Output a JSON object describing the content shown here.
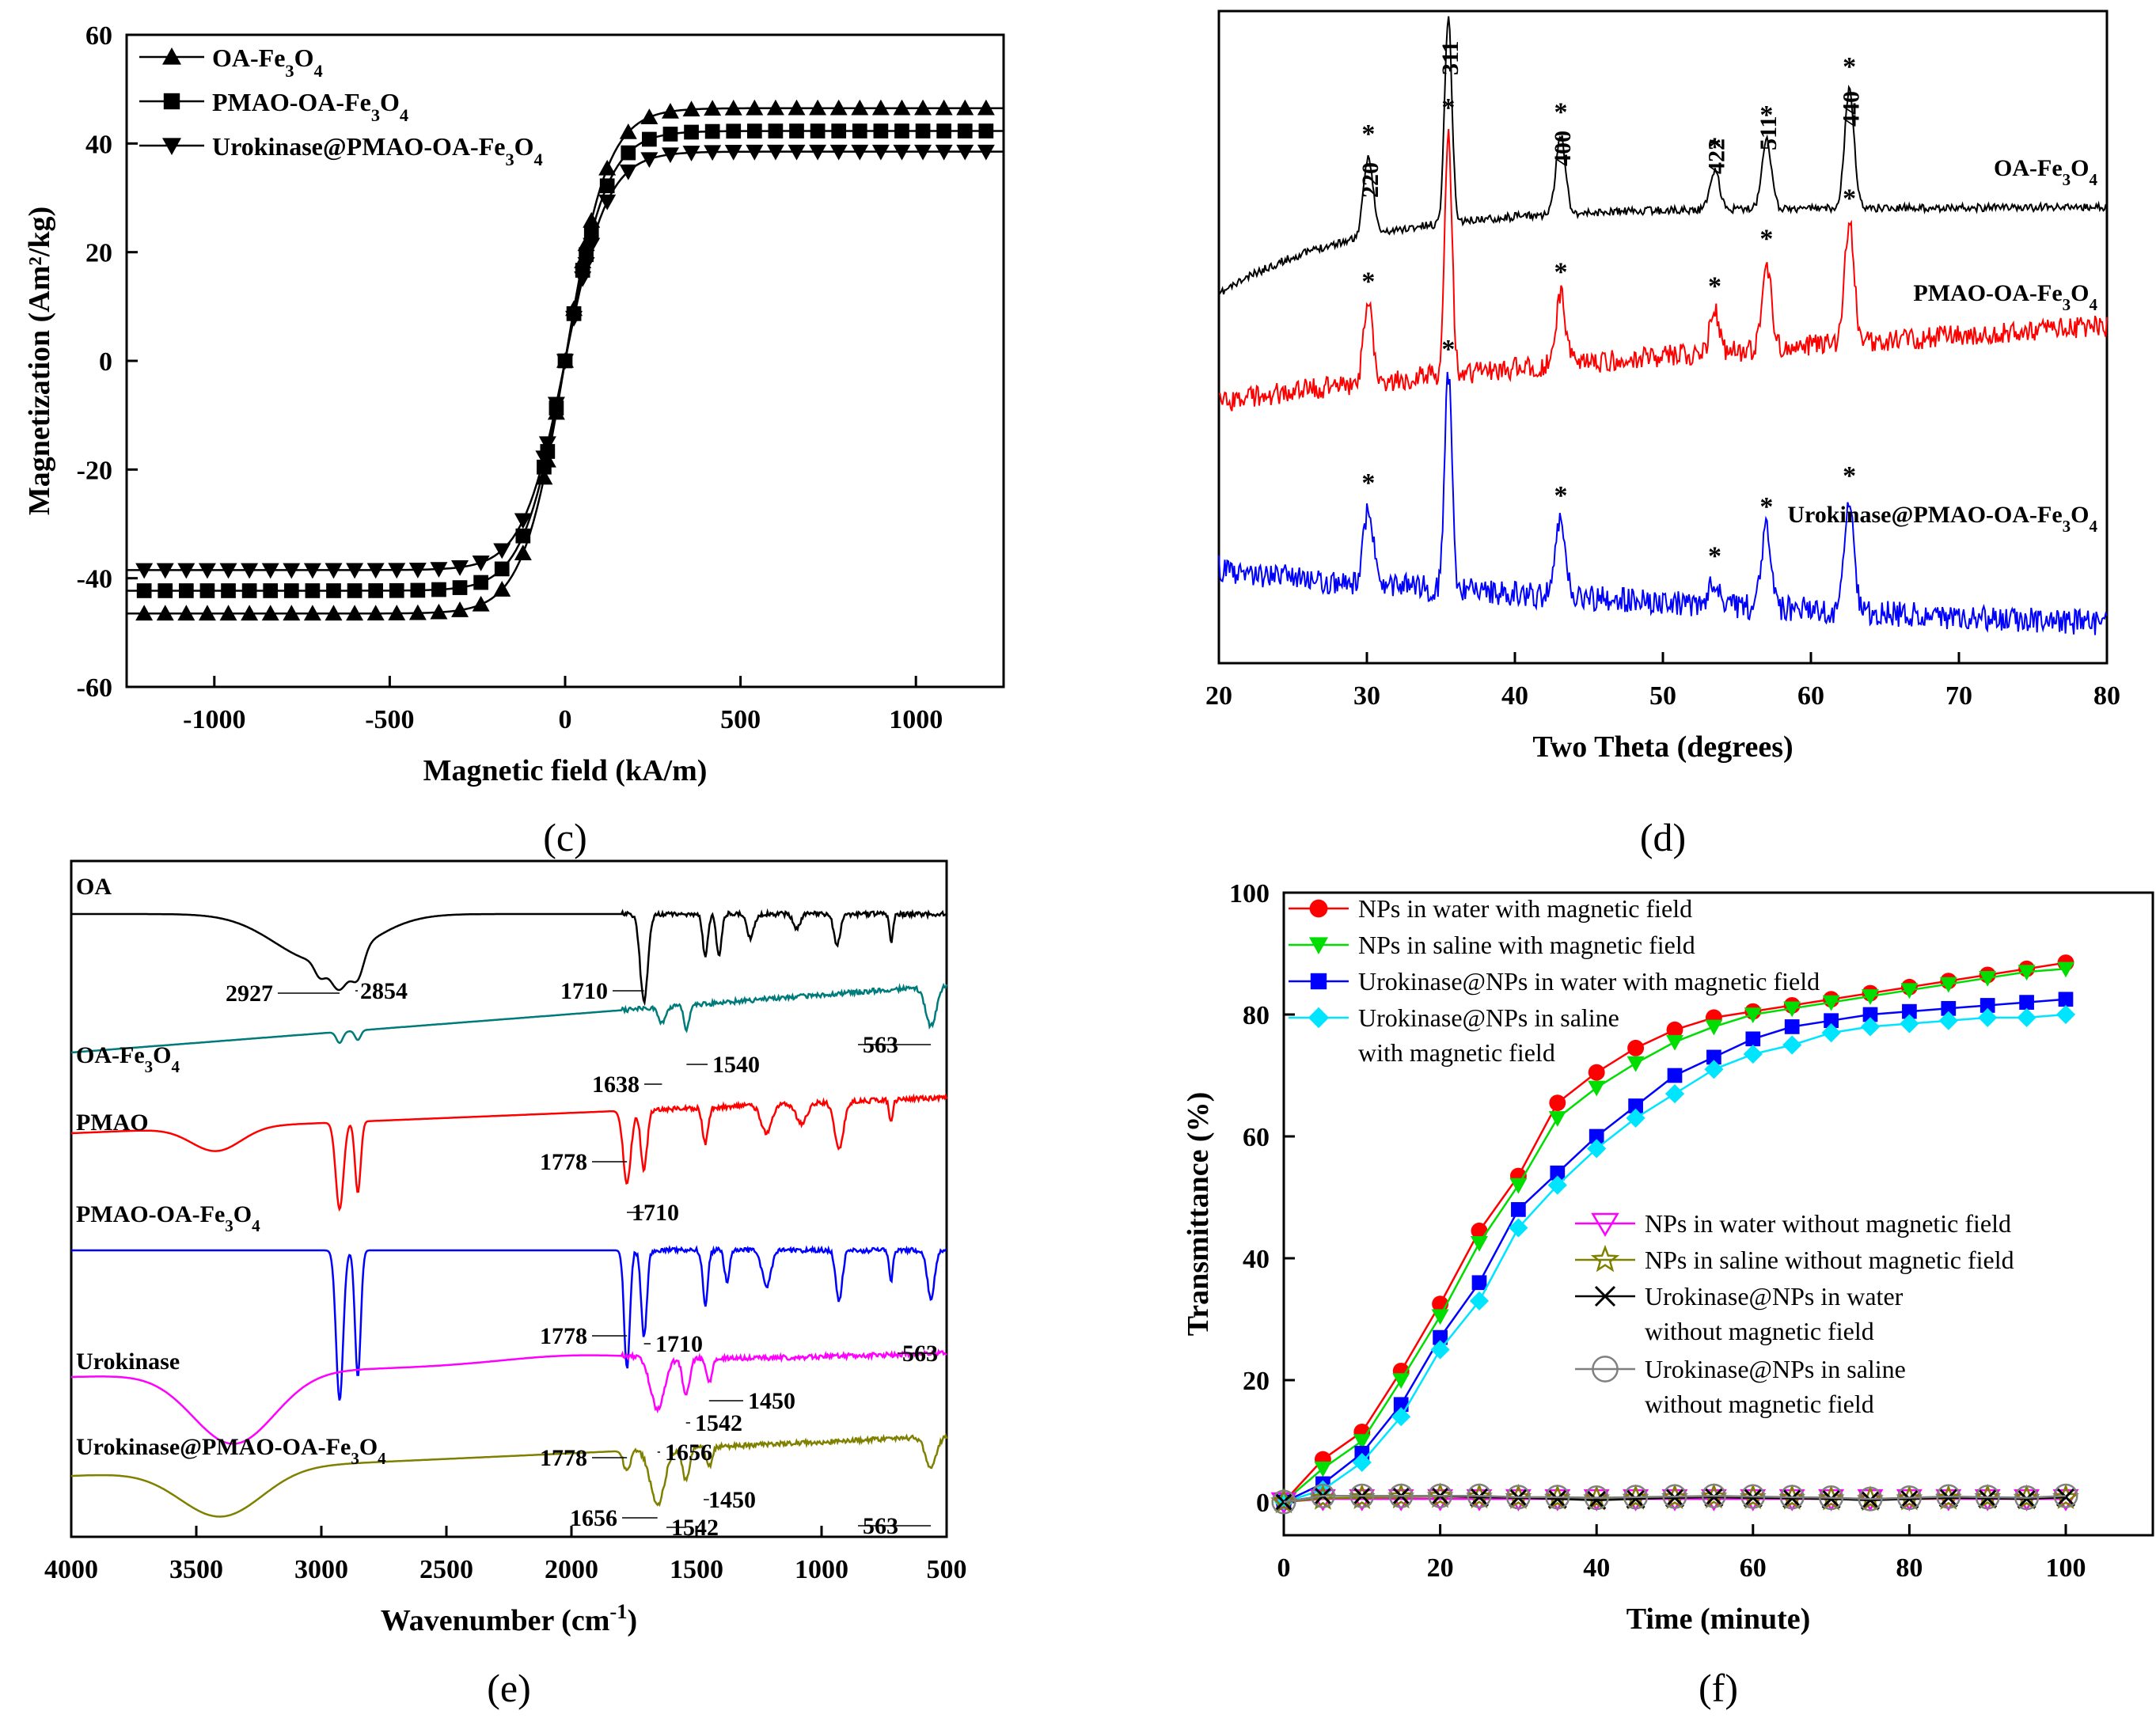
{
  "panels": {
    "c": {
      "label": "(c)",
      "chart_data": {
        "type": "line",
        "xlabel": "Magnetic field (kA/m)",
        "ylabel": "Magnetization (Am²/kg)",
        "xlim": [
          -1250,
          1250
        ],
        "ylim": [
          -60,
          60
        ],
        "xticks": [
          "-1000",
          "-500",
          "0",
          "500",
          "1000"
        ],
        "yticks": [
          "-60",
          "-40",
          "-20",
          "0",
          "20",
          "40",
          "60"
        ],
        "legend_position": "top-left",
        "series": [
          {
            "name": "OA-Fe3O4",
            "legend_main": "OA-Fe",
            "legend_sub1": "3",
            "legend_mid": "O",
            "legend_sub2": "4",
            "Ms": 46.5,
            "marker": "triangle-up"
          },
          {
            "name": "PMAO-OA-Fe3O4",
            "legend_main": "PMAO-OA-Fe",
            "legend_sub1": "3",
            "legend_mid": "O",
            "legend_sub2": "4",
            "Ms": 42.3,
            "marker": "square"
          },
          {
            "name": "Urokinase@PMAO-OA-Fe3O4",
            "legend_main": "Urokinase@PMAO-OA-Fe",
            "legend_sub1": "3",
            "legend_mid": "O",
            "legend_sub2": "4",
            "Ms": 38.5,
            "marker": "triangle-down"
          }
        ]
      }
    },
    "d": {
      "label": "(d)",
      "chart_data": {
        "type": "line",
        "xlabel": "Two Theta (degrees)",
        "xlim": [
          20,
          80
        ],
        "xticks": [
          "20",
          "30",
          "40",
          "50",
          "60",
          "70",
          "80"
        ],
        "peaks": [
          {
            "theta": 30.1,
            "hkl": "220"
          },
          {
            "theta": 35.5,
            "hkl": "311"
          },
          {
            "theta": 43.1,
            "hkl": "400"
          },
          {
            "theta": 53.5,
            "hkl": "422"
          },
          {
            "theta": 57.0,
            "hkl": "511"
          },
          {
            "theta": 62.6,
            "hkl": "440"
          }
        ],
        "star": "*",
        "series": [
          {
            "name": "OA-Fe3O4",
            "label_main": "OA-Fe",
            "label_sub1": "3",
            "label_mid": "O",
            "label_sub2": "4",
            "color": "#000000"
          },
          {
            "name": "PMAO-OA-Fe3O4",
            "label_main": "PMAO-OA-Fe",
            "label_sub1": "3",
            "label_mid": "O",
            "label_sub2": "4",
            "color": "#ff0000"
          },
          {
            "name": "Urokinase@PMAO-OA-Fe3O4",
            "label_main": "Urokinase@PMAO-OA-Fe",
            "label_sub1": "3",
            "label_mid": "O",
            "label_sub2": "4",
            "color": "#0000ff"
          }
        ]
      }
    },
    "e": {
      "label": "(e)",
      "chart_data": {
        "type": "line",
        "xlabel_main": "Wavenumber (cm",
        "xlabel_sup": "-1",
        "xlabel_end": ")",
        "xlim": [
          4000,
          500
        ],
        "xticks": [
          "4000",
          "3500",
          "3000",
          "2500",
          "2000",
          "1500",
          "1000",
          "500"
        ],
        "series": [
          {
            "name": "OA",
            "label": "OA",
            "color": "#000000",
            "annotations": [
              "2927",
              "2854",
              "1710"
            ]
          },
          {
            "name": "OA-Fe3O4",
            "label_main": "OA-Fe",
            "label_sub1": "3",
            "label_mid": "O",
            "label_sub2": "4",
            "color": "#007b7b",
            "annotations": [
              "1638",
              "1540",
              "563"
            ]
          },
          {
            "name": "PMAO",
            "label": "PMAO",
            "color": "#ff0000",
            "annotations": [
              "1778",
              "1710"
            ]
          },
          {
            "name": "PMAO-OA-Fe3O4",
            "label_main": "PMAO-OA-Fe",
            "label_sub1": "3",
            "label_mid": "O",
            "label_sub2": "4",
            "color": "#0000ff",
            "annotations": [
              "1778",
              "1710",
              "563"
            ]
          },
          {
            "name": "Urokinase",
            "label": "Urokinase",
            "color": "#ff00ff",
            "annotations": [
              "1450",
              "1542",
              "1656"
            ]
          },
          {
            "name": "Urokinase@PMAO-OA-Fe3O4",
            "label_main": "Urokinase@PMAO-OA-Fe",
            "label_sub1": "3",
            "label_mid": "O",
            "label_sub2": "4",
            "color": "#808000",
            "annotations": [
              "1778",
              "1450",
              "1656",
              "1542",
              "563"
            ]
          }
        ]
      }
    },
    "f": {
      "label": "(f)",
      "chart_data": {
        "type": "line",
        "xlabel": "Time (minute)",
        "ylabel": "Transmittance (%)",
        "xlim": [
          0,
          100
        ],
        "ylim": [
          0,
          100
        ],
        "xticks": [
          "0",
          "20",
          "40",
          "60",
          "80",
          "100"
        ],
        "yticks": [
          "0",
          "20",
          "40",
          "60",
          "80",
          "100"
        ],
        "x": [
          0,
          5,
          10,
          15,
          20,
          25,
          30,
          35,
          40,
          45,
          50,
          55,
          60,
          65,
          70,
          75,
          80,
          85,
          90,
          95,
          100
        ],
        "series": [
          {
            "name": "NPs in water with magnetic field",
            "lines": [
              "NPs in water with magnetic field"
            ],
            "color": "#ff0000",
            "marker": "circle",
            "values": [
              0,
              7,
              11.5,
              21.5,
              32.5,
              44.5,
              53.5,
              65.5,
              70.5,
              74.5,
              77.5,
              79.5,
              80.5,
              81.5,
              82.5,
              83.5,
              84.5,
              85.5,
              86.5,
              87.5,
              88.5
            ]
          },
          {
            "name": "NPs in saline with magnetic field",
            "lines": [
              "NPs in saline with magnetic field"
            ],
            "color": "#00dd00",
            "marker": "triangle-down",
            "values": [
              0,
              5.5,
              10,
              20,
              30.5,
              42.5,
              52,
              63,
              68,
              72,
              75.5,
              78,
              80,
              81,
              82,
              83,
              84,
              85,
              86,
              87,
              87.5
            ]
          },
          {
            "name": "Urokinase@NPs in water with magnetic field",
            "lines": [
              "Urokinase@NPs in water with magnetic field"
            ],
            "color": "#0000ff",
            "marker": "square",
            "values": [
              0,
              3,
              8,
              16,
              27,
              36,
              48,
              54,
              60,
              65,
              70,
              73,
              76,
              78,
              79,
              80,
              80.5,
              81,
              81.5,
              82,
              82.5
            ]
          },
          {
            "name": "Urokinase@NPs in saline with magnetic field",
            "lines": [
              "Urokinase@NPs in saline",
              "with magnetic field"
            ],
            "color": "#00e5ff",
            "marker": "diamond",
            "values": [
              0,
              2,
              6.5,
              14,
              25,
              33,
              45,
              52,
              58,
              63,
              67,
              71,
              73.5,
              75,
              77,
              78,
              78.5,
              79,
              79.5,
              79.5,
              80
            ]
          },
          {
            "name": "NPs in water without magnetic field",
            "lines": [
              "NPs in water without magnetic field"
            ],
            "color": "#ff00ff",
            "marker": "triangle-down-open",
            "values": [
              0,
              0.5,
              0.5,
              0.5,
              0.5,
              0.5,
              0.5,
              0.5,
              0.5,
              0.5,
              0.5,
              0.5,
              0.5,
              0.5,
              0.5,
              0.5,
              0.5,
              0.5,
              0.5,
              0.5,
              0.5
            ]
          },
          {
            "name": "NPs in saline without magnetic field",
            "lines": [
              "NPs in saline without magnetic field"
            ],
            "color": "#808000",
            "marker": "star-open",
            "values": [
              0,
              0.6,
              0.7,
              0.8,
              0.9,
              0.8,
              0.7,
              0.6,
              0.5,
              0.6,
              0.7,
              0.8,
              0.7,
              0.6,
              0.5,
              0.4,
              0.5,
              0.6,
              0.7,
              0.6,
              0.7
            ]
          },
          {
            "name": "Urokinase@NPs in water without magnetic field",
            "lines": [
              "Urokinase@NPs in water",
              "without magnetic field"
            ],
            "color": "#000000",
            "marker": "x",
            "values": [
              0,
              1,
              1,
              1,
              1,
              0.8,
              0.7,
              0.5,
              0.3,
              0.5,
              0.7,
              0.8,
              0.7,
              0.6,
              0.5,
              0.3,
              0.5,
              0.7,
              0.6,
              0.5,
              0.8
            ]
          },
          {
            "name": "Urokinase@NPs in saline without magnetic field",
            "lines": [
              "Urokinase@NPs in saline",
              "without magnetic field"
            ],
            "color": "#808080",
            "marker": "circle-open",
            "values": [
              0,
              1,
              1,
              1,
              1,
              1,
              0.8,
              0.8,
              0.7,
              0.8,
              0.9,
              1,
              0.9,
              0.8,
              0.7,
              0.5,
              0.7,
              0.9,
              0.8,
              0.7,
              1
            ]
          }
        ]
      }
    }
  }
}
